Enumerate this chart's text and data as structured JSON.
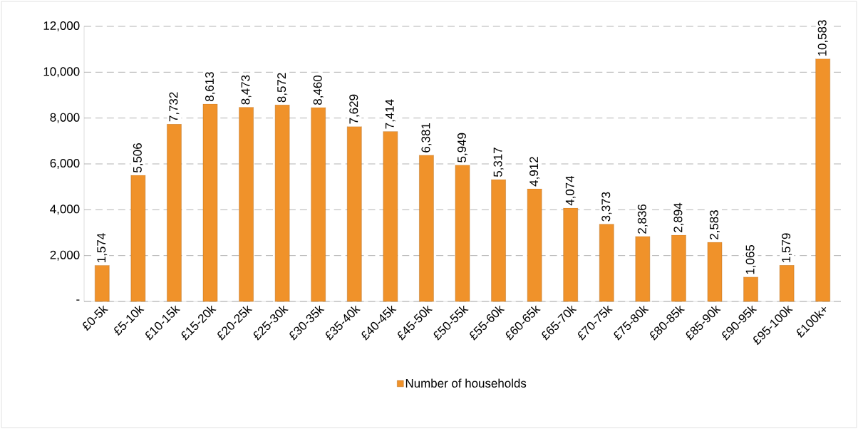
{
  "chart_data": {
    "type": "bar",
    "categories": [
      "£0-5k",
      "£5-10k",
      "£10-15k",
      "£15-20k",
      "£20-25k",
      "£25-30k",
      "£30-35k",
      "£35-40k",
      "£40-45k",
      "£45-50k",
      "£50-55k",
      "£55-60k",
      "£60-65k",
      "£65-70k",
      "£70-75k",
      "£75-80k",
      "£80-85k",
      "£85-90k",
      "£90-95k",
      "£95-100k",
      "£100k+"
    ],
    "series": [
      {
        "name": "Number of households",
        "color": "#f0922a",
        "values": [
          1574,
          5506,
          7732,
          8613,
          8473,
          8572,
          8460,
          7629,
          7414,
          6381,
          5949,
          5317,
          4912,
          4074,
          3373,
          2836,
          2894,
          2583,
          1065,
          1579,
          10583
        ],
        "value_labels": [
          "1,574",
          "5,506",
          "7,732",
          "8,613",
          "8,473",
          "8,572",
          "8,460",
          "7,629",
          "7,414",
          "6,381",
          "5,949",
          "5,317",
          "4,912",
          "4,074",
          "3,373",
          "2,836",
          "2,894",
          "2,583",
          "1,065",
          "1,579",
          "10,583"
        ]
      }
    ],
    "ylim": [
      0,
      12000
    ],
    "yticks": [
      {
        "value": 0,
        "label": "-"
      },
      {
        "value": 2000,
        "label": "2,000"
      },
      {
        "value": 4000,
        "label": "4,000"
      },
      {
        "value": 6000,
        "label": "6,000"
      },
      {
        "value": 8000,
        "label": "8,000"
      },
      {
        "value": 10000,
        "label": "10,000"
      },
      {
        "value": 12000,
        "label": "12,000"
      }
    ],
    "grid": "y",
    "legend": "bottom"
  }
}
